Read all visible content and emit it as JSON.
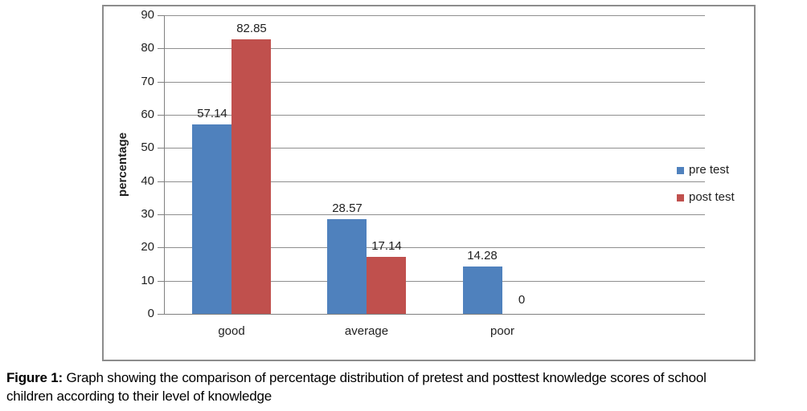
{
  "figure": {
    "caption_label": "Figure 1:",
    "caption_line1": "Graph showing the comparison of percentage distribution of pretest and posttest knowledge scores of school",
    "caption_line2": "children according to their level of knowledge"
  },
  "chart_data": {
    "type": "bar",
    "title": "",
    "categories": [
      "good",
      "average",
      "poor"
    ],
    "series": [
      {
        "name": "pre test",
        "color": "#4F81BD",
        "values": [
          57.14,
          28.57,
          14.28
        ]
      },
      {
        "name": "post test",
        "color": "#C0504D",
        "values": [
          82.85,
          17.14,
          0
        ]
      }
    ],
    "data_labels": [
      "57.14",
      "82.85",
      "28.57",
      "17.14",
      "14.28",
      "0"
    ],
    "xlabel": "",
    "ylabel": "percentage",
    "ylim": [
      0,
      90
    ],
    "ytick_step": 10,
    "yticks": [
      0,
      10,
      20,
      30,
      40,
      50,
      60,
      70,
      80,
      90
    ],
    "grid": "horizontal",
    "legend_position": "right",
    "colors": {
      "grid": "#8f8f8f",
      "border": "#8c8c8c",
      "text": "#1f1f1f"
    }
  }
}
